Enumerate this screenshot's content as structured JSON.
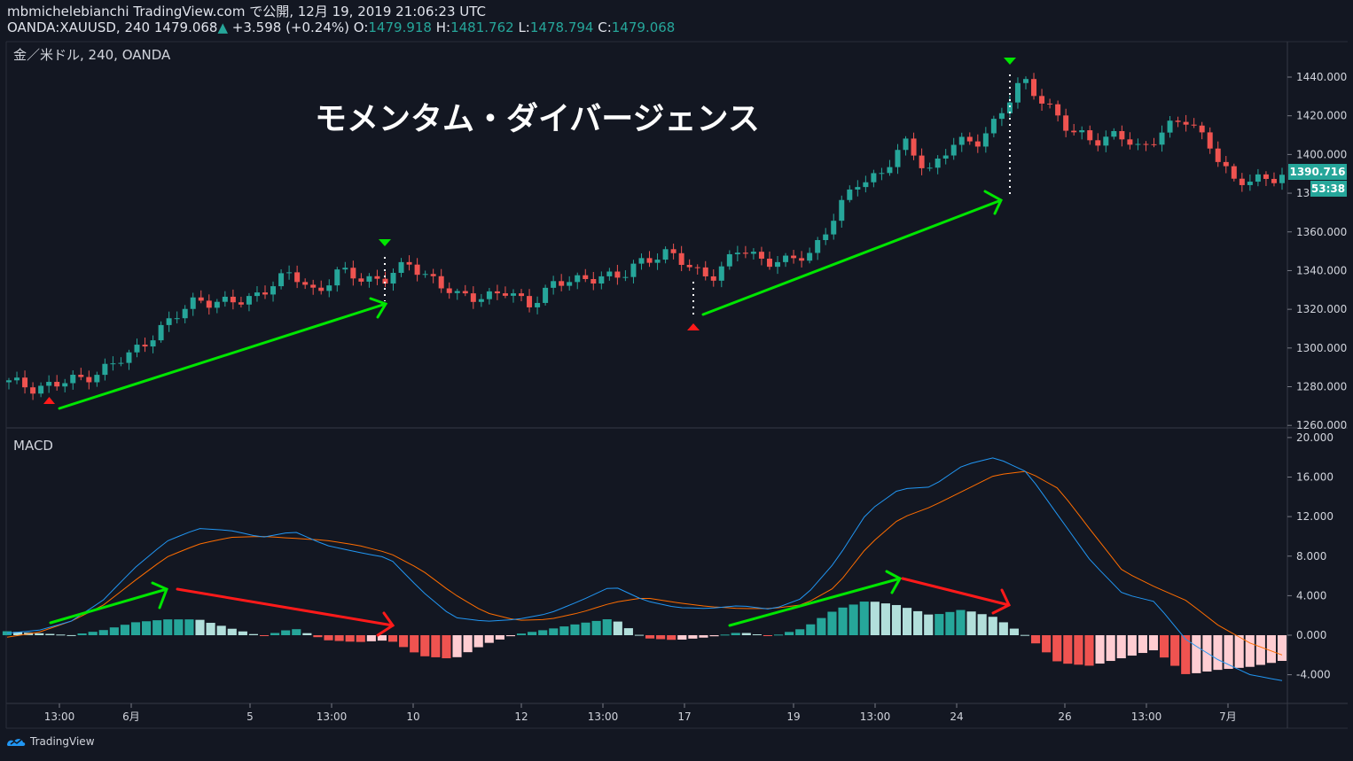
{
  "header": {
    "author_line": "mbmichelebianchi TradingView.com で公開, 12月 19, 2019 21:06:23 UTC",
    "symbol": "OANDA:XAUUSD, 240",
    "last": "1479.068",
    "change": "+3.598 (+0.24%)",
    "o_label": "O:",
    "o_value": "1479.918",
    "h_label": "H:",
    "h_value": "1481.762",
    "l_label": "L:",
    "l_value": "1478.794",
    "c_label": "C:",
    "c_value": "1479.068"
  },
  "price_pane": {
    "legend": "金／米ドル, 240, OANDA",
    "annotation": "モメンタム・ダイバージェンス",
    "price_axis_ticks": [
      "1440.000",
      "1420.000",
      "1400.000",
      "1380.000",
      "1360.000",
      "1340.000",
      "1320.000",
      "1300.000",
      "1280.000",
      "1260.000"
    ],
    "current_price_label": "1390.716",
    "countdown_label": "53:38"
  },
  "macd_pane": {
    "legend": "MACD",
    "axis_ticks": [
      "20.000",
      "16.000",
      "12.000",
      "8.000",
      "4.000",
      "0.000",
      "-4.000"
    ]
  },
  "time_axis": {
    "labels": [
      "13:00",
      "6月",
      "5",
      "13:00",
      "10",
      "12",
      "13:00",
      "17",
      "19",
      "13:00",
      "24",
      "26",
      "13:00",
      "7月"
    ]
  },
  "footer": {
    "brand": "TradingView"
  },
  "colors": {
    "background": "#131722",
    "up_candle": "#26a69a",
    "down_candle": "#ef5350",
    "hist_up_strong": "#26a69a",
    "hist_up_weak": "#b2dfdb",
    "hist_down_strong": "#ef5350",
    "hist_down_weak": "#ffcdd2",
    "macd_line": "#2196f3",
    "signal_line": "#ff6d00",
    "green_arrow": "#00e600",
    "red_arrow": "#ff1a1a"
  },
  "chart_data": {
    "type": "candlestick_with_macd",
    "symbol": "XAUUSD",
    "timeframe": "240",
    "price_axis_range": [
      1260,
      1445
    ],
    "macd_axis_range": [
      -5,
      20
    ],
    "price_path": [
      [
        1282,
        1282
      ],
      [
        1281,
        1280
      ],
      [
        1279,
        1281
      ],
      [
        1282,
        1284
      ],
      [
        1290,
        1289
      ],
      [
        1294,
        1295
      ],
      [
        1300,
        1306
      ],
      [
        1313,
        1315
      ],
      [
        1322,
        1326
      ],
      [
        1326,
        1323
      ],
      [
        1325,
        1324
      ],
      [
        1330,
        1332
      ],
      [
        1336,
        1338
      ],
      [
        1332,
        1329
      ],
      [
        1334,
        1339
      ],
      [
        1337,
        1336
      ],
      [
        1333,
        1336
      ],
      [
        1340,
        1343
      ],
      [
        1338,
        1336
      ],
      [
        1327,
        1326
      ],
      [
        1328,
        1327
      ],
      [
        1327,
        1329
      ],
      [
        1323,
        1322
      ],
      [
        1330,
        1333
      ],
      [
        1336,
        1334
      ],
      [
        1335,
        1338
      ],
      [
        1339,
        1336
      ],
      [
        1342,
        1347
      ],
      [
        1352,
        1349
      ],
      [
        1343,
        1340
      ],
      [
        1336,
        1338
      ],
      [
        1341,
        1351
      ],
      [
        1349,
        1346
      ],
      [
        1348,
        1344
      ],
      [
        1342,
        1349
      ],
      [
        1359,
        1368
      ],
      [
        1380,
        1385
      ],
      [
        1386,
        1391
      ],
      [
        1399,
        1405
      ],
      [
        1403,
        1392
      ],
      [
        1398,
        1405
      ],
      [
        1404,
        1406
      ],
      [
        1410,
        1420
      ],
      [
        1433,
        1438
      ],
      [
        1424,
        1427
      ],
      [
        1420,
        1411
      ],
      [
        1405,
        1408
      ],
      [
        1406,
        1410
      ],
      [
        1405,
        1402
      ],
      [
        1408,
        1414
      ],
      [
        1419,
        1417
      ],
      [
        1408,
        1405
      ],
      [
        1394,
        1384
      ],
      [
        1385,
        1388
      ],
      [
        1387,
        1389
      ]
    ],
    "macd_path": [
      0.2,
      0.5,
      1.4,
      3.5,
      6.8,
      9.5,
      10.8,
      10.6,
      9.9,
      10.5,
      9.1,
      8.4,
      7.8,
      4.5,
      1.8,
      1.4,
      1.6,
      2.2,
      3.5,
      5.0,
      3.5,
      2.8,
      2.7,
      3.0,
      2.6,
      3.8,
      7.5,
      12.5,
      14.8,
      15.0,
      17.2,
      18.0,
      16.5,
      12.0,
      7.5,
      4.2,
      3.4,
      -0.5,
      -2.5,
      -4.0,
      -4.6
    ],
    "signal_path": [
      -0.2,
      0.3,
      1.4,
      3.0,
      5.5,
      7.9,
      9.2,
      9.9,
      10.0,
      9.8,
      9.6,
      9.1,
      8.3,
      6.6,
      4.2,
      2.3,
      1.5,
      1.6,
      2.3,
      3.3,
      3.8,
      3.3,
      2.9,
      2.7,
      2.7,
      3.1,
      4.9,
      9.0,
      11.8,
      13.0,
      14.6,
      16.2,
      16.6,
      14.8,
      10.6,
      6.5,
      4.9,
      3.5,
      1.0,
      -0.8,
      -2.0
    ]
  }
}
